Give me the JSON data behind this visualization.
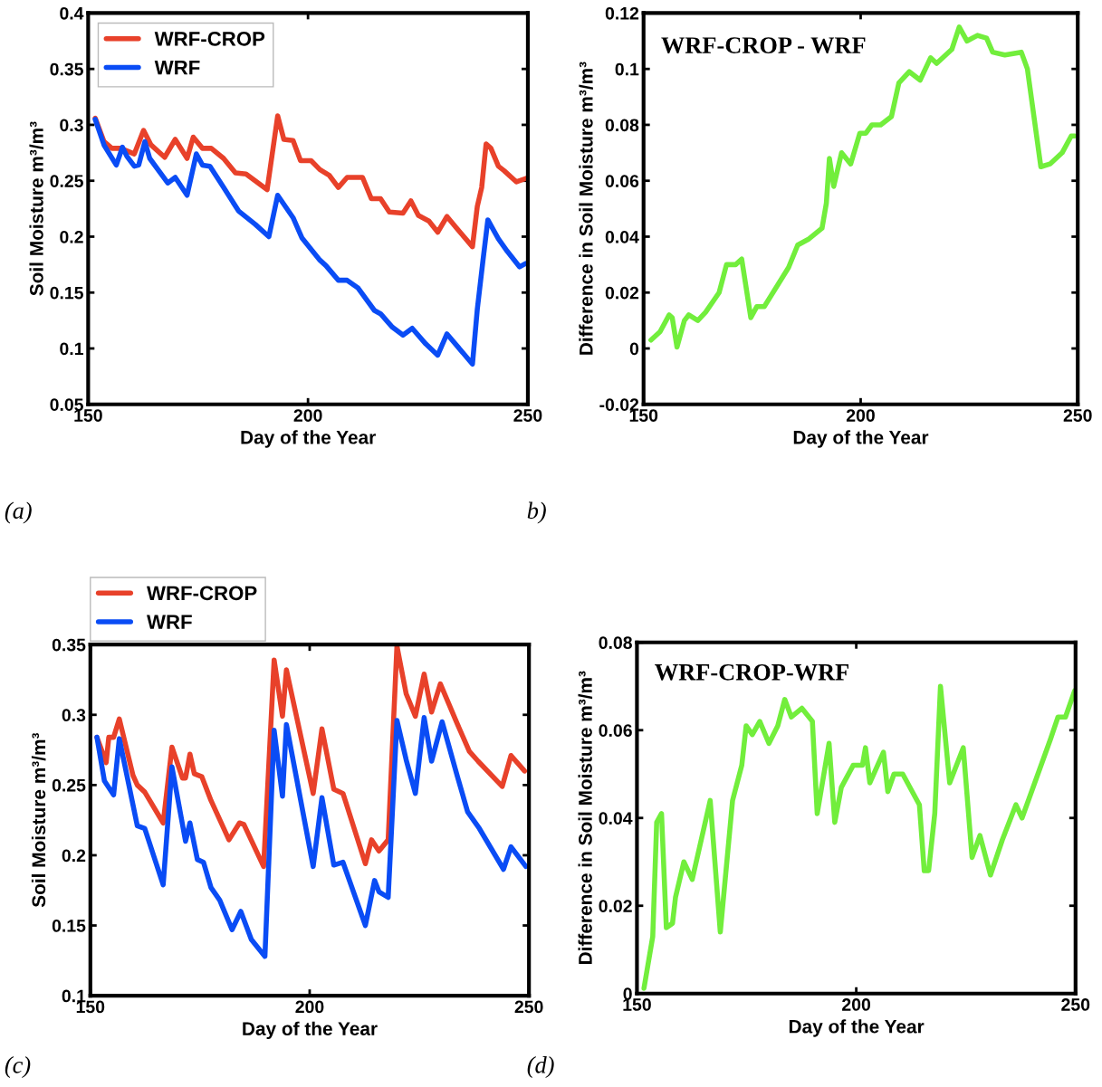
{
  "chart_data": [
    {
      "type": "line",
      "xlabel": "Day of the Year",
      "ylabel": "Soil Moisture m³/m³",
      "xlim": [
        150,
        250
      ],
      "xticks": [
        150,
        200,
        250
      ],
      "ylim": [
        0.05,
        0.4
      ],
      "yticks": [
        0.05,
        0.1,
        0.15,
        0.2,
        0.25,
        0.3,
        0.35,
        0.4
      ],
      "grid": false,
      "legend": "top left",
      "annotations": [
        "(a)"
      ],
      "series": [
        {
          "name": "WRF-CROP",
          "color": "#e8412a",
          "x": [
            151.6,
            153.6,
            155.4,
            157.4,
            160.5,
            162.6,
            164.3,
            167.4,
            169.8,
            172.5,
            173.9,
            176.0,
            178.0,
            180.8,
            183.5,
            185.9,
            190.7,
            193.1,
            194.5,
            196.6,
            198.3,
            200.7,
            202.7,
            204.8,
            206.9,
            208.9,
            212.4,
            214.4,
            216.5,
            218.5,
            221.6,
            223.4,
            225.1,
            227.5,
            229.5,
            231.6,
            233.7,
            237.4,
            238.5,
            239.5,
            240.5,
            241.6,
            243.3,
            244.6,
            247.4,
            249.5
          ],
          "values": [
            0.306,
            0.285,
            0.279,
            0.279,
            0.274,
            0.295,
            0.282,
            0.271,
            0.287,
            0.27,
            0.289,
            0.279,
            0.279,
            0.27,
            0.257,
            0.256,
            0.242,
            0.308,
            0.287,
            0.286,
            0.268,
            0.268,
            0.26,
            0.255,
            0.244,
            0.253,
            0.253,
            0.234,
            0.234,
            0.222,
            0.221,
            0.232,
            0.219,
            0.214,
            0.204,
            0.218,
            0.208,
            0.191,
            0.227,
            0.244,
            0.283,
            0.279,
            0.263,
            0.259,
            0.249,
            0.252
          ]
        },
        {
          "name": "WRF",
          "color": "#0a4cf5",
          "x": [
            151.6,
            153.6,
            156.4,
            157.8,
            158.8,
            160.5,
            161.5,
            162.9,
            164.0,
            168.1,
            169.8,
            172.5,
            174.6,
            176.0,
            177.7,
            180.8,
            184.2,
            188.0,
            191.1,
            193.1,
            196.6,
            198.6,
            202.7,
            204.1,
            206.9,
            208.9,
            211.4,
            215.1,
            216.5,
            219.2,
            221.6,
            223.7,
            226.8,
            229.5,
            231.6,
            237.4,
            238.5,
            239.8,
            240.9,
            243.3,
            245.3,
            248.1,
            249.5
          ],
          "values": [
            0.305,
            0.282,
            0.264,
            0.28,
            0.272,
            0.263,
            0.264,
            0.285,
            0.27,
            0.248,
            0.253,
            0.237,
            0.274,
            0.264,
            0.263,
            0.244,
            0.223,
            0.211,
            0.2,
            0.237,
            0.217,
            0.199,
            0.179,
            0.174,
            0.161,
            0.161,
            0.154,
            0.134,
            0.131,
            0.119,
            0.112,
            0.118,
            0.104,
            0.094,
            0.113,
            0.086,
            0.135,
            0.179,
            0.215,
            0.198,
            0.187,
            0.173,
            0.176
          ]
        }
      ]
    },
    {
      "type": "line",
      "xlabel": "Day of the Year",
      "ylabel": "Difference in Soil Moisture m³/m³",
      "xlim": [
        150,
        250
      ],
      "xticks": [
        150,
        200,
        250
      ],
      "ylim": [
        -0.02,
        0.12
      ],
      "yticks": [
        -0.02,
        0,
        0.02,
        0.04,
        0.06,
        0.08,
        0.1,
        0.12
      ],
      "grid": false,
      "annotations": [
        "WRF-CROP - WRF",
        "b)"
      ],
      "series": [
        {
          "color": "#72ee3c",
          "x": [
            151.7,
            153.8,
            155.9,
            156.6,
            157.7,
            159.4,
            160.4,
            162.5,
            164.3,
            167.4,
            169.1,
            171.2,
            172.6,
            174.7,
            176.1,
            177.8,
            183.4,
            185.5,
            187.9,
            191.1,
            192.1,
            192.8,
            193.8,
            195.6,
            197.7,
            199.8,
            201.2,
            202.6,
            204.6,
            207.1,
            208.8,
            211.2,
            213.7,
            216.1,
            217.5,
            221.0,
            222.7,
            224.5,
            226.9,
            229.0,
            230.4,
            233.2,
            237.0,
            238.4,
            241.5,
            243.6,
            246.4,
            248.5,
            249.3
          ],
          "values": [
            0.003,
            0.006,
            0.012,
            0.011,
            0.0005,
            0.01,
            0.012,
            0.01,
            0.013,
            0.02,
            0.03,
            0.03,
            0.032,
            0.011,
            0.015,
            0.015,
            0.029,
            0.037,
            0.039,
            0.043,
            0.052,
            0.068,
            0.058,
            0.07,
            0.066,
            0.077,
            0.077,
            0.08,
            0.08,
            0.083,
            0.095,
            0.099,
            0.096,
            0.104,
            0.102,
            0.107,
            0.115,
            0.11,
            0.112,
            0.111,
            0.106,
            0.105,
            0.106,
            0.1,
            0.065,
            0.066,
            0.07,
            0.076,
            0.076
          ]
        }
      ]
    },
    {
      "type": "line",
      "xlabel": "Day of the Year",
      "ylabel": "Soil Moisture m³/m³",
      "xlim": [
        150,
        250
      ],
      "xticks": [
        150,
        200,
        250
      ],
      "ylim": [
        0.1,
        0.35
      ],
      "yticks": [
        0.1,
        0.15,
        0.2,
        0.25,
        0.3,
        0.35
      ],
      "grid": false,
      "legend": "top",
      "annotations": [
        "(c)"
      ],
      "series": [
        {
          "name": "WRF-CROP",
          "color": "#e8412a",
          "x": [
            151.5,
            153.6,
            154.2,
            155.3,
            156.6,
            159.7,
            160.7,
            162.4,
            166.6,
            168.6,
            171.0,
            171.7,
            172.7,
            173.7,
            175.4,
            177.5,
            181.6,
            184.0,
            185.0,
            189.5,
            191.9,
            193.8,
            194.7,
            200.8,
            202.8,
            205.5,
            207.6,
            212.7,
            214.1,
            215.8,
            217.9,
            219.9,
            222.0,
            224.1,
            226.1,
            227.8,
            229.8,
            233.6,
            236.4,
            238.4,
            243.9,
            245.9,
            249.0
          ],
          "values": [
            0.284,
            0.266,
            0.284,
            0.284,
            0.297,
            0.257,
            0.25,
            0.245,
            0.223,
            0.277,
            0.255,
            0.255,
            0.272,
            0.258,
            0.256,
            0.239,
            0.211,
            0.223,
            0.222,
            0.192,
            0.339,
            0.299,
            0.332,
            0.244,
            0.29,
            0.247,
            0.244,
            0.194,
            0.211,
            0.203,
            0.211,
            0.349,
            0.315,
            0.299,
            0.329,
            0.302,
            0.322,
            0.294,
            0.274,
            0.267,
            0.249,
            0.271,
            0.26
          ]
        },
        {
          "name": "WRF",
          "color": "#0a4cf5",
          "x": [
            151.5,
            153.2,
            155.3,
            156.6,
            160.7,
            162.4,
            166.6,
            168.6,
            171.7,
            172.7,
            174.4,
            175.8,
            177.5,
            179.5,
            182.3,
            184.3,
            186.7,
            189.8,
            191.9,
            193.8,
            194.7,
            200.8,
            202.8,
            205.5,
            207.6,
            212.7,
            214.8,
            215.8,
            217.9,
            219.9,
            222.0,
            224.1,
            226.1,
            227.8,
            230.2,
            233.6,
            236.0,
            238.7,
            244.2,
            245.9,
            249.3
          ],
          "values": [
            0.284,
            0.253,
            0.243,
            0.283,
            0.221,
            0.219,
            0.179,
            0.263,
            0.21,
            0.223,
            0.197,
            0.195,
            0.177,
            0.168,
            0.147,
            0.16,
            0.14,
            0.128,
            0.289,
            0.242,
            0.293,
            0.192,
            0.241,
            0.193,
            0.195,
            0.15,
            0.182,
            0.174,
            0.17,
            0.296,
            0.268,
            0.244,
            0.298,
            0.267,
            0.295,
            0.257,
            0.231,
            0.219,
            0.19,
            0.206,
            0.192
          ]
        }
      ]
    },
    {
      "type": "line",
      "xlabel": "Day of the Year",
      "ylabel": "Difference in Soil Moisture m³/m³",
      "xlim": [
        150,
        250
      ],
      "xticks": [
        150,
        200,
        250
      ],
      "ylim": [
        0,
        0.08
      ],
      "yticks": [
        0,
        0.02,
        0.04,
        0.06,
        0.08
      ],
      "grid": false,
      "annotations": [
        "WRF-CROP-WRF",
        "(d)"
      ],
      "series": [
        {
          "color": "#72ee3c",
          "x": [
            151.6,
            153.6,
            154.5,
            155.6,
            156.7,
            158.1,
            158.8,
            160.7,
            162.6,
            166.7,
            169.0,
            171.8,
            173.9,
            174.9,
            176.3,
            178.0,
            180.1,
            182.1,
            183.7,
            185.2,
            187.6,
            190.0,
            191.1,
            193.8,
            195.1,
            196.6,
            199.3,
            201.4,
            202.1,
            203.1,
            206.2,
            207.2,
            208.6,
            210.6,
            214.4,
            215.5,
            216.5,
            217.9,
            219.2,
            221.3,
            224.4,
            226.4,
            228.2,
            230.6,
            233.3,
            236.4,
            237.8,
            244.3,
            246.0,
            247.7,
            249.8
          ],
          "values": [
            0.0012,
            0.013,
            0.039,
            0.041,
            0.015,
            0.016,
            0.022,
            0.03,
            0.026,
            0.044,
            0.014,
            0.044,
            0.052,
            0.061,
            0.059,
            0.062,
            0.057,
            0.061,
            0.067,
            0.063,
            0.065,
            0.062,
            0.041,
            0.057,
            0.039,
            0.047,
            0.052,
            0.052,
            0.056,
            0.048,
            0.055,
            0.046,
            0.05,
            0.05,
            0.043,
            0.028,
            0.028,
            0.041,
            0.07,
            0.048,
            0.056,
            0.031,
            0.036,
            0.027,
            0.035,
            0.043,
            0.04,
            0.058,
            0.063,
            0.063,
            0.069
          ]
        }
      ]
    }
  ]
}
